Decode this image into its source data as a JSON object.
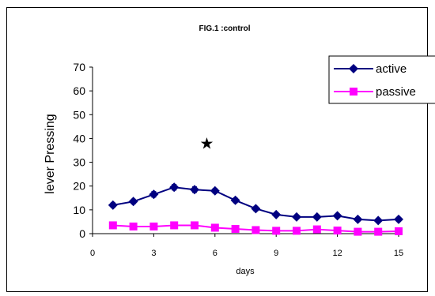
{
  "chart_data": {
    "type": "line",
    "title": "FIG.1 :control",
    "xlabel": "days",
    "ylabel": "lever Pressing",
    "xlim": [
      0,
      15
    ],
    "ylim": [
      0,
      70
    ],
    "xticks": [
      0,
      3,
      6,
      9,
      12,
      15
    ],
    "yticks": [
      0,
      10,
      20,
      30,
      40,
      50,
      60,
      70
    ],
    "grid": false,
    "legend_position": "top-right",
    "annotation": "★",
    "annotation_point": {
      "x": 5.6,
      "y": 38
    },
    "series": [
      {
        "name": "active",
        "color": "#000080",
        "marker": "diamond",
        "x": [
          1,
          2,
          3,
          4,
          5,
          6,
          7,
          8,
          9,
          10,
          11,
          12,
          13,
          14,
          15
        ],
        "y": [
          12,
          13.5,
          16.5,
          19.5,
          18.5,
          18,
          14,
          10.5,
          8,
          7,
          7,
          7.5,
          6,
          5.5,
          6
        ],
        "error": [
          1,
          1,
          1.2,
          1.2,
          1.2,
          1,
          1,
          1,
          0.8,
          0.8,
          0.8,
          0.8,
          0.8,
          0.8,
          0.8
        ]
      },
      {
        "name": "passive",
        "color": "#FF00FF",
        "marker": "square",
        "x": [
          1,
          2,
          3,
          4,
          5,
          6,
          7,
          8,
          9,
          10,
          11,
          12,
          13,
          14,
          15
        ],
        "y": [
          3.5,
          3,
          3,
          3.5,
          3.5,
          2.5,
          2,
          1.5,
          1.2,
          1.2,
          1.8,
          1.3,
          0.8,
          0.8,
          1
        ]
      }
    ]
  }
}
